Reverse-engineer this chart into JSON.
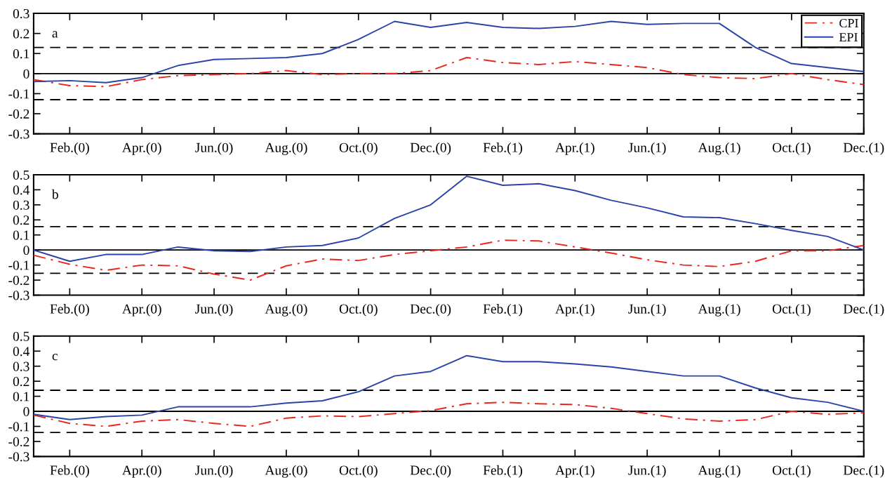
{
  "chart_data": [
    {
      "type": "line",
      "annotations": [
        "a"
      ],
      "categories": [
        null,
        "Feb.(0)",
        null,
        "Apr.(0)",
        null,
        "Jun.(0)",
        null,
        "Aug.(0)",
        null,
        "Oct.(0)",
        null,
        "Dec.(0)",
        null,
        "Feb.(1)",
        null,
        "Apr.(1)",
        null,
        "Jun.(1)",
        null,
        "Aug.(1)",
        null,
        "Oct.(1)",
        null,
        "Dec.(1)"
      ],
      "ylim": [
        -0.3,
        0.3
      ],
      "yticks": [
        -0.3,
        -0.2,
        -0.1,
        0,
        0.1,
        0.2,
        0.3
      ],
      "legend": "top right",
      "series": [
        {
          "name": "CPI",
          "color": "#e8281e",
          "line_style": "dashdot",
          "values": [
            -0.03,
            -0.06,
            -0.065,
            -0.03,
            -0.01,
            -0.005,
            0,
            0.015,
            -0.005,
            0,
            0,
            0.015,
            0.08,
            0.055,
            0.045,
            0.06,
            0.045,
            0.03,
            -0.005,
            -0.02,
            -0.025,
            0,
            -0.03,
            -0.055
          ]
        },
        {
          "name": "EPI",
          "color": "#2a44a8",
          "line_style": "solid",
          "values": [
            -0.04,
            -0.035,
            -0.045,
            -0.02,
            0.04,
            0.07,
            0.075,
            0.08,
            0.1,
            0.17,
            0.26,
            0.23,
            0.255,
            0.23,
            0.225,
            0.235,
            0.26,
            0.245,
            0.25,
            0.25,
            0.13,
            0.05,
            0.03,
            0.01
          ]
        }
      ],
      "ref_lines": [
        {
          "axis": "y",
          "value": 0.13,
          "line_style": "dashed",
          "color": "#000000"
        },
        {
          "axis": "y",
          "value": 0,
          "line_style": "solid",
          "color": "#000000"
        },
        {
          "axis": "y",
          "value": -0.13,
          "line_style": "dashed",
          "color": "#000000"
        }
      ]
    },
    {
      "type": "line",
      "annotations": [
        "b"
      ],
      "categories": [
        null,
        "Feb.(0)",
        null,
        "Apr.(0)",
        null,
        "Jun.(0)",
        null,
        "Aug.(0)",
        null,
        "Oct.(0)",
        null,
        "Dec.(0)",
        null,
        "Feb.(1)",
        null,
        "Apr.(1)",
        null,
        "Jun.(1)",
        null,
        "Aug.(1)",
        null,
        "Oct.(1)",
        null,
        "Dec.(1)"
      ],
      "ylim": [
        -0.3,
        0.5
      ],
      "yticks": [
        -0.3,
        -0.2,
        -0.1,
        0,
        0.1,
        0.2,
        0.3,
        0.4,
        0.5
      ],
      "series": [
        {
          "color": "#e8281e",
          "line_style": "dashdot",
          "values": [
            -0.035,
            -0.095,
            -0.135,
            -0.1,
            -0.105,
            -0.16,
            -0.2,
            -0.105,
            -0.06,
            -0.07,
            -0.03,
            -0.005,
            0.02,
            0.065,
            0.06,
            0.02,
            -0.02,
            -0.065,
            -0.1,
            -0.11,
            -0.075,
            -0.005,
            -0.005,
            0.03
          ]
        },
        {
          "color": "#2a44a8",
          "line_style": "solid",
          "values": [
            0,
            -0.075,
            -0.03,
            -0.03,
            0.02,
            -0.005,
            -0.01,
            0.02,
            0.03,
            0.08,
            0.21,
            0.3,
            0.49,
            0.43,
            0.44,
            0.395,
            0.33,
            0.28,
            0.22,
            0.215,
            0.175,
            0.13,
            0.09,
            0
          ]
        }
      ],
      "ref_lines": [
        {
          "axis": "y",
          "value": 0.155,
          "line_style": "dashed",
          "color": "#000000"
        },
        {
          "axis": "y",
          "value": 0,
          "line_style": "solid",
          "color": "#000000"
        },
        {
          "axis": "y",
          "value": -0.155,
          "line_style": "dashed",
          "color": "#000000"
        }
      ]
    },
    {
      "type": "line",
      "annotations": [
        "c"
      ],
      "categories": [
        null,
        "Feb.(0)",
        null,
        "Apr.(0)",
        null,
        "Jun.(0)",
        null,
        "Aug.(0)",
        null,
        "Oct.(0)",
        null,
        "Dec.(0)",
        null,
        "Feb.(1)",
        null,
        "Apr.(1)",
        null,
        "Jun.(1)",
        null,
        "Aug.(1)",
        null,
        "Oct.(1)",
        null,
        "Dec.(1)"
      ],
      "ylim": [
        -0.3,
        0.5
      ],
      "yticks": [
        -0.3,
        -0.2,
        -0.1,
        0,
        0.1,
        0.2,
        0.3,
        0.4,
        0.5
      ],
      "series": [
        {
          "color": "#e8281e",
          "line_style": "dashdot",
          "values": [
            -0.025,
            -0.08,
            -0.1,
            -0.065,
            -0.055,
            -0.08,
            -0.1,
            -0.045,
            -0.03,
            -0.035,
            -0.015,
            0.005,
            0.05,
            0.06,
            0.05,
            0.045,
            0.02,
            -0.015,
            -0.05,
            -0.065,
            -0.055,
            0,
            -0.02,
            -0.01
          ]
        },
        {
          "color": "#2a44a8",
          "line_style": "solid",
          "values": [
            -0.02,
            -0.055,
            -0.035,
            -0.025,
            0.03,
            0.03,
            0.03,
            0.055,
            0.07,
            0.13,
            0.235,
            0.265,
            0.37,
            0.33,
            0.33,
            0.315,
            0.295,
            0.265,
            0.235,
            0.235,
            0.155,
            0.09,
            0.06,
            0
          ]
        }
      ],
      "ref_lines": [
        {
          "axis": "y",
          "value": 0.14,
          "line_style": "dashed",
          "color": "#000000"
        },
        {
          "axis": "y",
          "value": 0,
          "line_style": "solid",
          "color": "#000000"
        },
        {
          "axis": "y",
          "value": -0.14,
          "line_style": "dashed",
          "color": "#000000"
        }
      ]
    }
  ]
}
